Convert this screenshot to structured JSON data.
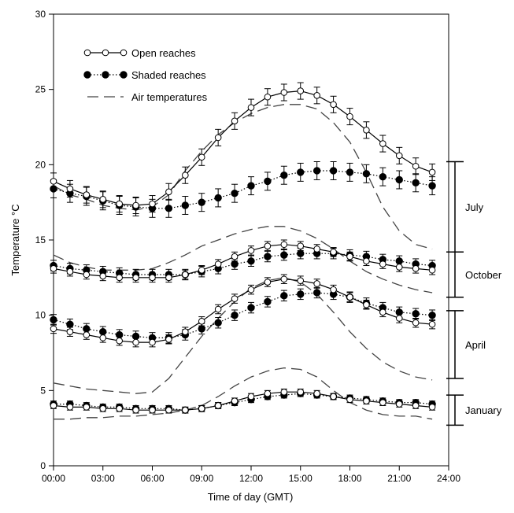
{
  "chart_data": {
    "type": "line",
    "xlabel": "Time of day (GMT)",
    "ylabel": "Temperature °C",
    "xlim": [
      0,
      24
    ],
    "ylim": [
      0,
      30
    ],
    "x_ticks": [
      0,
      3,
      6,
      9,
      12,
      15,
      18,
      21,
      24
    ],
    "x_tick_labels": [
      "00:00",
      "03:00",
      "06:00",
      "09:00",
      "12:00",
      "15:00",
      "18:00",
      "21:00",
      "24:00"
    ],
    "y_ticks": [
      0,
      5,
      10,
      15,
      20,
      25,
      30
    ],
    "y_tick_labels": [
      "0",
      "5",
      "10",
      "15",
      "20",
      "25",
      "30"
    ],
    "legend": {
      "position": "top-left",
      "entries": [
        {
          "label": "Open reaches",
          "style": "open-circle-solid"
        },
        {
          "label": "Shaded reaches",
          "style": "filled-circle-dotted"
        },
        {
          "label": "Air temperatures",
          "style": "dashed"
        }
      ]
    },
    "x": [
      0,
      1,
      2,
      3,
      4,
      5,
      6,
      7,
      8,
      9,
      10,
      11,
      12,
      13,
      14,
      15,
      16,
      17,
      18,
      19,
      20,
      21,
      22,
      23
    ],
    "seasons": [
      {
        "label": "July",
        "range": [
          14.2,
          20.2
        ],
        "open": [
          18.9,
          18.4,
          18.0,
          17.7,
          17.4,
          17.3,
          17.4,
          18.2,
          19.3,
          20.5,
          21.8,
          22.9,
          23.8,
          24.5,
          24.8,
          24.9,
          24.6,
          24.0,
          23.2,
          22.3,
          21.4,
          20.6,
          19.9,
          19.5
        ],
        "shaded": [
          18.4,
          18.1,
          17.9,
          17.6,
          17.3,
          17.2,
          17.1,
          17.1,
          17.3,
          17.5,
          17.8,
          18.1,
          18.6,
          18.9,
          19.3,
          19.5,
          19.6,
          19.6,
          19.5,
          19.4,
          19.2,
          19.0,
          18.8,
          18.6
        ],
        "air": [
          18.6,
          18.0,
          17.7,
          17.3,
          17.1,
          17.0,
          17.2,
          18.0,
          19.6,
          20.9,
          22.0,
          22.8,
          23.4,
          23.8,
          24.0,
          24.0,
          23.7,
          22.8,
          21.5,
          19.5,
          17.2,
          15.6,
          14.7,
          14.4
        ]
      },
      {
        "label": "October",
        "range": [
          11.2,
          14.2
        ],
        "open": [
          13.1,
          12.9,
          12.7,
          12.6,
          12.5,
          12.5,
          12.5,
          12.5,
          12.7,
          13.0,
          13.4,
          13.9,
          14.3,
          14.6,
          14.7,
          14.6,
          14.4,
          14.2,
          13.9,
          13.6,
          13.4,
          13.2,
          13.1,
          13.0
        ],
        "shaded": [
          13.3,
          13.1,
          13.0,
          12.9,
          12.8,
          12.7,
          12.7,
          12.7,
          12.7,
          12.9,
          13.1,
          13.4,
          13.6,
          13.9,
          14.0,
          14.1,
          14.1,
          14.1,
          14.0,
          13.9,
          13.7,
          13.6,
          13.4,
          13.3
        ],
        "air": [
          14.0,
          13.5,
          13.2,
          13.0,
          13.0,
          13.0,
          13.1,
          13.5,
          14.0,
          14.6,
          15.0,
          15.4,
          15.7,
          15.9,
          15.9,
          15.6,
          15.1,
          14.4,
          13.6,
          12.9,
          12.4,
          12.0,
          11.7,
          11.5
        ]
      },
      {
        "label": "April",
        "range": [
          5.8,
          10.3
        ],
        "open": [
          9.1,
          8.9,
          8.7,
          8.5,
          8.3,
          8.2,
          8.2,
          8.4,
          8.9,
          9.6,
          10.4,
          11.1,
          11.7,
          12.2,
          12.4,
          12.3,
          12.1,
          11.7,
          11.2,
          10.7,
          10.2,
          9.8,
          9.5,
          9.4
        ],
        "shaded": [
          9.7,
          9.4,
          9.1,
          8.9,
          8.7,
          8.6,
          8.5,
          8.5,
          8.7,
          9.1,
          9.5,
          10.0,
          10.5,
          10.9,
          11.3,
          11.4,
          11.5,
          11.4,
          11.2,
          10.8,
          10.5,
          10.2,
          10.1,
          10.0
        ],
        "air": [
          5.5,
          5.3,
          5.1,
          5.0,
          4.9,
          4.8,
          4.9,
          5.8,
          7.2,
          8.6,
          9.8,
          10.9,
          11.8,
          12.3,
          12.5,
          12.2,
          11.4,
          10.2,
          8.9,
          7.8,
          6.9,
          6.3,
          5.9,
          5.7
        ]
      },
      {
        "label": "January",
        "range": [
          2.7,
          4.7
        ],
        "open": [
          4.0,
          3.9,
          3.9,
          3.8,
          3.8,
          3.7,
          3.7,
          3.7,
          3.7,
          3.8,
          4.0,
          4.3,
          4.6,
          4.8,
          4.9,
          4.9,
          4.8,
          4.6,
          4.4,
          4.3,
          4.2,
          4.1,
          4.0,
          3.9
        ],
        "shaded": [
          4.1,
          4.1,
          4.0,
          3.9,
          3.9,
          3.8,
          3.8,
          3.8,
          3.7,
          3.8,
          4.0,
          4.2,
          4.4,
          4.6,
          4.7,
          4.8,
          4.7,
          4.6,
          4.5,
          4.4,
          4.3,
          4.2,
          4.2,
          4.1
        ],
        "air": [
          3.1,
          3.1,
          3.2,
          3.2,
          3.3,
          3.3,
          3.4,
          3.5,
          3.7,
          4.0,
          4.6,
          5.3,
          5.9,
          6.3,
          6.5,
          6.4,
          5.9,
          5.0,
          4.2,
          3.7,
          3.4,
          3.3,
          3.3,
          3.1
        ]
      }
    ]
  }
}
